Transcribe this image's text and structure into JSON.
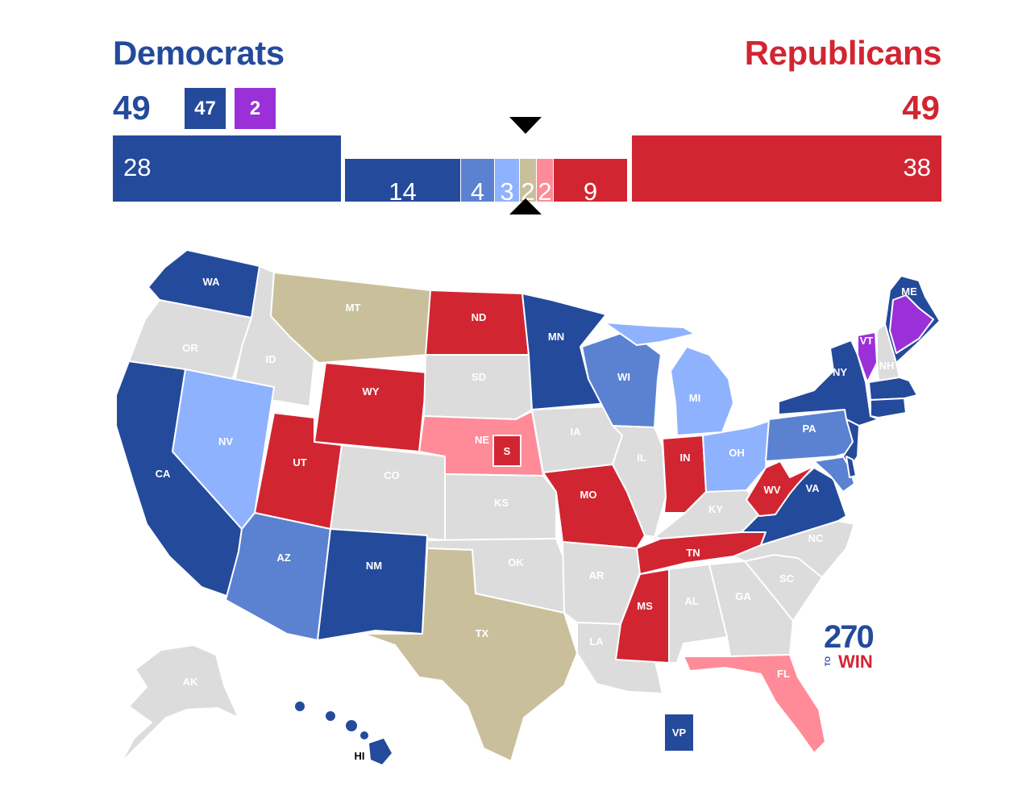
{
  "header": {
    "dem_label": "Democrats",
    "rep_label": "Republicans",
    "dem_total": "49",
    "rep_total": "49",
    "dem_breakdown": [
      {
        "value": "47",
        "color": "#244a9b"
      },
      {
        "value": "2",
        "color": "#9b30d9"
      }
    ]
  },
  "bar": {
    "dem_safe": "28",
    "rep_safe": "38",
    "segments": [
      {
        "value": "14",
        "color": "#244a9b"
      },
      {
        "value": "4",
        "color": "#5b82d1"
      },
      {
        "value": "3",
        "color": "#8fb2ff"
      },
      {
        "value": "2",
        "color": "#c9bf9b"
      },
      {
        "value": "2",
        "color": "#ff8b98"
      },
      {
        "value": "9",
        "color": "#d22532"
      }
    ]
  },
  "colors": {
    "safe_dem": "#244a9b",
    "likely_dem": "#5b82d1",
    "lean_dem": "#8fb2ff",
    "tossup": "#c9bf9b",
    "lean_rep": "#ff8b98",
    "safe_rep": "#d22532",
    "independent": "#9b30d9",
    "no_race": "#dcdcdc"
  },
  "states": [
    {
      "abbr": "WA",
      "rating": "safe_dem"
    },
    {
      "abbr": "OR",
      "rating": "no_race"
    },
    {
      "abbr": "CA",
      "rating": "safe_dem"
    },
    {
      "abbr": "ID",
      "rating": "no_race"
    },
    {
      "abbr": "NV",
      "rating": "lean_dem"
    },
    {
      "abbr": "AZ",
      "rating": "likely_dem"
    },
    {
      "abbr": "MT",
      "rating": "tossup"
    },
    {
      "abbr": "WY",
      "rating": "safe_rep"
    },
    {
      "abbr": "UT",
      "rating": "safe_rep"
    },
    {
      "abbr": "CO",
      "rating": "no_race"
    },
    {
      "abbr": "NM",
      "rating": "safe_dem"
    },
    {
      "abbr": "ND",
      "rating": "safe_rep"
    },
    {
      "abbr": "SD",
      "rating": "no_race"
    },
    {
      "abbr": "NE",
      "rating": "lean_rep"
    },
    {
      "abbr": "S",
      "rating": "safe_rep"
    },
    {
      "abbr": "KS",
      "rating": "no_race"
    },
    {
      "abbr": "OK",
      "rating": "no_race"
    },
    {
      "abbr": "TX",
      "rating": "tossup"
    },
    {
      "abbr": "MN",
      "rating": "safe_dem"
    },
    {
      "abbr": "IA",
      "rating": "no_race"
    },
    {
      "abbr": "MO",
      "rating": "safe_rep"
    },
    {
      "abbr": "AR",
      "rating": "no_race"
    },
    {
      "abbr": "LA",
      "rating": "no_race"
    },
    {
      "abbr": "WI",
      "rating": "likely_dem"
    },
    {
      "abbr": "IL",
      "rating": "no_race"
    },
    {
      "abbr": "MS",
      "rating": "safe_rep"
    },
    {
      "abbr": "MI",
      "rating": "lean_dem"
    },
    {
      "abbr": "IN",
      "rating": "safe_rep"
    },
    {
      "abbr": "KY",
      "rating": "no_race"
    },
    {
      "abbr": "TN",
      "rating": "safe_rep"
    },
    {
      "abbr": "AL",
      "rating": "no_race"
    },
    {
      "abbr": "OH",
      "rating": "lean_dem"
    },
    {
      "abbr": "WV",
      "rating": "safe_rep"
    },
    {
      "abbr": "VA",
      "rating": "safe_dem"
    },
    {
      "abbr": "NC",
      "rating": "no_race"
    },
    {
      "abbr": "SC",
      "rating": "no_race"
    },
    {
      "abbr": "GA",
      "rating": "no_race"
    },
    {
      "abbr": "FL",
      "rating": "lean_rep"
    },
    {
      "abbr": "PA",
      "rating": "likely_dem"
    },
    {
      "abbr": "NY",
      "rating": "safe_dem"
    },
    {
      "abbr": "VT",
      "rating": "independent"
    },
    {
      "abbr": "NH",
      "rating": "no_race"
    },
    {
      "abbr": "ME",
      "rating": "safe_dem"
    },
    {
      "abbr": "AK",
      "rating": "no_race"
    },
    {
      "abbr": "HI",
      "rating": "safe_dem"
    }
  ],
  "vp_label": "VP",
  "logo": {
    "number": "270",
    "small": "TO",
    "word": "WIN"
  }
}
